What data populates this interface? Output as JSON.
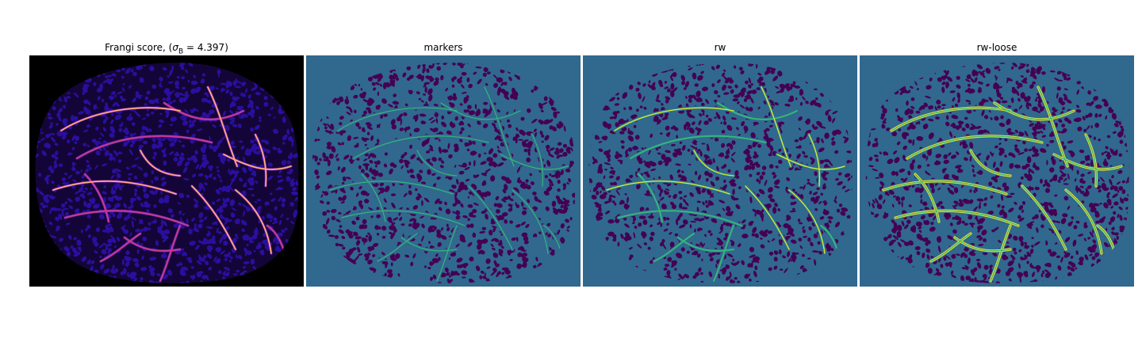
{
  "figure": {
    "panels": [
      {
        "id": "frangi",
        "title": "Frangi score, (",
        "title_math": "σ",
        "title_sub": "B",
        "title_tail": " = 4.397)",
        "colormap": "magma"
      },
      {
        "id": "markers",
        "title": "markers",
        "colormap": "viridis"
      },
      {
        "id": "rw",
        "title": "rw",
        "colormap": "viridis"
      },
      {
        "id": "rw-loose",
        "title": "rw-loose",
        "colormap": "viridis"
      }
    ],
    "colors": {
      "frangi_background": "#000000",
      "frangi_texture": "#2a0f9e",
      "frangi_low": "#6a1fb0",
      "frangi_mid": "#c43a8f",
      "frangi_high": "#fcb07a",
      "viridis_background": "#31688e",
      "viridis_dark": "#440154",
      "viridis_vessel": "#35b779",
      "viridis_bright": "#fde725"
    }
  }
}
